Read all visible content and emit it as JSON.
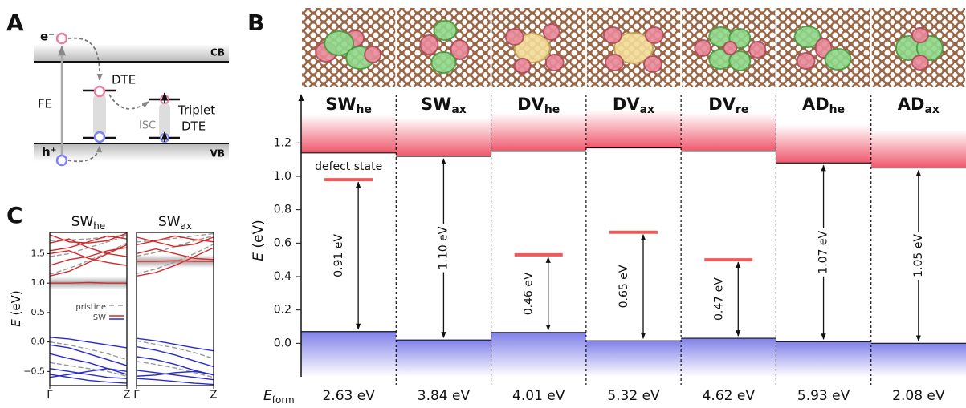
{
  "panel_labels": [
    "A",
    "B",
    "C"
  ],
  "panel_a": {
    "electron": "e⁻",
    "cb": "CB",
    "fe": "FE",
    "dte": "DTE",
    "isc": "ISC",
    "triplet": [
      "Triplet",
      "DTE"
    ],
    "hole": "h⁺",
    "vb": "VB"
  },
  "chart_data": [
    {
      "type": "defect-levels",
      "categories": [
        {
          "name": "SW",
          "sub": "he"
        },
        {
          "name": "SW",
          "sub": "ax"
        },
        {
          "name": "DV",
          "sub": "he"
        },
        {
          "name": "DV",
          "sub": "ax"
        },
        {
          "name": "DV",
          "sub": "re"
        },
        {
          "name": "AD",
          "sub": "he"
        },
        {
          "name": "AD",
          "sub": "ax"
        }
      ],
      "cb": [
        1.14,
        1.12,
        1.15,
        1.17,
        1.15,
        1.08,
        1.05
      ],
      "vb": [
        0.07,
        0.02,
        0.065,
        0.015,
        0.03,
        0.01,
        0.0
      ],
      "defect": [
        0.98,
        null,
        0.53,
        0.665,
        0.5,
        null,
        null
      ],
      "gaps": [
        0.91,
        1.1,
        0.46,
        0.65,
        0.47,
        1.07,
        1.05
      ],
      "gap_labels": [
        "0.91 eV",
        "1.10 eV",
        "0.46 eV",
        "0.65 eV",
        "0.47 eV",
        "1.07 eV",
        "1.05 eV"
      ],
      "annotation": "defect state",
      "formation_label": {
        "main": "E",
        "sub": "form"
      },
      "formation": [
        2.63,
        3.84,
        4.01,
        5.32,
        4.62,
        5.93,
        2.08
      ],
      "formation_labels": [
        "2.63 eV",
        "3.84 eV",
        "4.01 eV",
        "5.32 eV",
        "4.62 eV",
        "5.93 eV",
        "2.08 eV"
      ],
      "ylabel": {
        "main": "E",
        "unit": " (eV)"
      },
      "ylim": [
        -0.2,
        1.48
      ],
      "yticks": [
        {
          "value": 0,
          "label": "0.0"
        },
        0.2,
        0.4,
        0.6,
        0.8,
        {
          "value": 1,
          "label": "1.0"
        },
        1.2
      ],
      "colors": {
        "cb": "#ec3a52",
        "vb": "#4a4ae0",
        "defect": "#f05a5a"
      }
    },
    {
      "type": "band-structure",
      "title": {
        "main": "SW",
        "sub": "he"
      },
      "ylabel": {
        "main": "E",
        "unit": " (eV)"
      },
      "x": [
        0,
        0.25,
        0.5,
        0.75,
        1
      ],
      "xticks": [
        {
          "value": 0,
          "label": "Γ"
        },
        {
          "value": 1,
          "label": "Z"
        }
      ],
      "ylim": [
        -0.74,
        1.86
      ],
      "yticks": [
        {
          "value": -0.5,
          "label": "−0.5"
        },
        {
          "value": 0,
          "label": "0.0"
        },
        0.5,
        {
          "value": 1,
          "label": "1.0"
        },
        1.5
      ],
      "highlight": 1.0,
      "legend": true,
      "series": [
        {
          "name": "pristine",
          "color": "#999999",
          "bands": [
            [
              1.15,
              1.25,
              1.38,
              1.52,
              1.68
            ],
            [
              1.45,
              1.5,
              1.6,
              1.7,
              1.8
            ],
            [
              1.72,
              1.73,
              1.75,
              1.78,
              1.82
            ],
            [
              0.0,
              -0.05,
              -0.12,
              -0.2,
              -0.3
            ],
            [
              -0.35,
              -0.4,
              -0.45,
              -0.5,
              -0.58
            ]
          ]
        },
        {
          "name": "SW",
          "color": "#d42a2a",
          "bands": [
            [
              1.0,
              1.0,
              1.01,
              1.0,
              1.0
            ],
            [
              1.12,
              1.2,
              1.35,
              1.5,
              1.65
            ],
            [
              1.3,
              1.4,
              1.45,
              1.55,
              1.6
            ],
            [
              1.55,
              1.6,
              1.7,
              1.8,
              1.75
            ],
            [
              1.68,
              1.75,
              1.6,
              1.5,
              1.45
            ],
            [
              1.82,
              1.7,
              1.68,
              1.72,
              1.85
            ],
            [
              1.5,
              1.55,
              1.42,
              1.35,
              1.3
            ]
          ]
        },
        {
          "name": "SW",
          "color": "#2a2ad0",
          "bands": [
            [
              0.08,
              0.05,
              0.0,
              -0.05,
              -0.1
            ],
            [
              -0.05,
              -0.1,
              -0.2,
              -0.3,
              -0.4
            ],
            [
              -0.2,
              -0.28,
              -0.35,
              -0.45,
              -0.55
            ],
            [
              -0.45,
              -0.5,
              -0.55,
              -0.6,
              -0.62
            ],
            [
              -0.6,
              -0.55,
              -0.5,
              -0.45,
              -0.5
            ],
            [
              -0.55,
              -0.6,
              -0.65,
              -0.68,
              -0.7
            ]
          ]
        }
      ]
    },
    {
      "type": "band-structure",
      "title": {
        "main": "SW",
        "sub": "ax"
      },
      "x": [
        0,
        0.25,
        0.5,
        0.75,
        1
      ],
      "xticks": [
        {
          "value": 0,
          "label": "Γ"
        },
        {
          "value": 1,
          "label": "Z"
        }
      ],
      "ylim": [
        -0.74,
        1.86
      ],
      "highlight": 1.37,
      "series": [
        {
          "name": "pristine",
          "color": "#999999",
          "bands": [
            [
              1.16,
              1.24,
              1.36,
              1.5,
              1.66
            ],
            [
              1.46,
              1.52,
              1.62,
              1.72,
              1.8
            ],
            [
              1.7,
              1.72,
              1.76,
              1.8,
              1.84
            ],
            [
              0.02,
              -0.04,
              -0.1,
              -0.18,
              -0.28
            ],
            [
              -0.33,
              -0.38,
              -0.44,
              -0.52,
              -0.6
            ]
          ]
        },
        {
          "name": "SW",
          "color": "#d42a2a",
          "bands": [
            [
              1.12,
              1.18,
              1.3,
              1.45,
              1.6
            ],
            [
              1.37,
              1.37,
              1.38,
              1.37,
              1.37
            ],
            [
              1.5,
              1.58,
              1.5,
              1.42,
              1.4
            ],
            [
              1.65,
              1.72,
              1.8,
              1.74,
              1.7
            ],
            [
              1.78,
              1.7,
              1.62,
              1.66,
              1.78
            ]
          ]
        },
        {
          "name": "SW",
          "color": "#2a2ad0",
          "bands": [
            [
              0.06,
              0.02,
              -0.04,
              -0.1,
              -0.15
            ],
            [
              -0.08,
              -0.14,
              -0.22,
              -0.32,
              -0.42
            ],
            [
              -0.25,
              -0.3,
              -0.38,
              -0.48,
              -0.56
            ],
            [
              -0.48,
              -0.52,
              -0.56,
              -0.6,
              -0.64
            ],
            [
              -0.58,
              -0.56,
              -0.52,
              -0.5,
              -0.55
            ],
            [
              -0.62,
              -0.64,
              -0.67,
              -0.7,
              -0.72
            ]
          ]
        }
      ]
    }
  ]
}
